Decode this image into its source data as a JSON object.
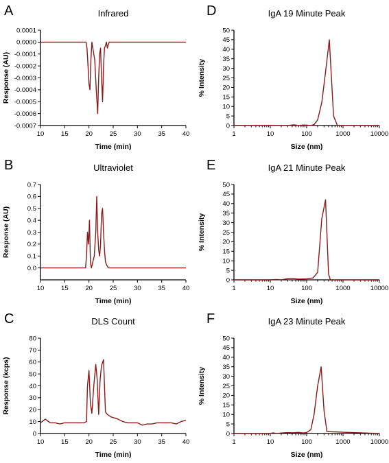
{
  "chart_data": [
    {
      "panel": "A",
      "type": "line",
      "title": "Infrared",
      "xlabel": "Time (min)",
      "ylabel": "Response (AU)",
      "xlim": [
        10,
        40
      ],
      "ylim": [
        -0.0007,
        0.0001
      ],
      "xscale": "linear",
      "xticks": [
        10,
        15,
        20,
        25,
        30,
        35,
        40
      ],
      "xtick_labels": [
        "10",
        "15",
        "20",
        "25",
        "30",
        "35",
        "40"
      ],
      "yticks": [
        -0.0007,
        -0.0006,
        -0.0005,
        -0.0004,
        -0.0003,
        -0.0002,
        -0.0001,
        0,
        0.0001
      ],
      "ytick_labels": [
        "-0.0007",
        "-0.0006",
        "-0.0005",
        "-0.0004",
        "-0.0003",
        "-0.0002",
        "-0.0001",
        "0.0000",
        "0.0001"
      ],
      "grid": false,
      "color": "#8b1a1a",
      "series": [
        {
          "x": [
            10,
            19.4,
            19.6,
            19.8,
            20.0,
            20.2,
            20.4,
            20.6,
            20.8,
            21.0,
            21.2,
            21.5,
            21.8,
            22.0,
            22.2,
            22.4,
            22.6,
            22.8,
            23.0,
            23.2,
            23.4,
            23.6,
            23.8,
            24.0,
            24.2,
            40
          ],
          "y": [
            0,
            0,
            -5e-05,
            -0.0002,
            -0.00035,
            -0.0004,
            -0.00015,
            0,
            -5e-05,
            -0.0001,
            -0.00015,
            -0.0004,
            -0.0006,
            -0.0003,
            -0.0001,
            -5e-05,
            -0.0003,
            -0.0005,
            -0.0002,
            -5e-05,
            -3e-05,
            0,
            -5e-05,
            -2e-05,
            0,
            0
          ]
        }
      ]
    },
    {
      "panel": "B",
      "type": "line",
      "title": "Ultraviolet",
      "xlabel": "Time (min)",
      "ylabel": "Response (AU)",
      "xlim": [
        10,
        40
      ],
      "ylim": [
        -0.1,
        0.7
      ],
      "xscale": "linear",
      "xticks": [
        10,
        15,
        20,
        25,
        30,
        35,
        40
      ],
      "xtick_labels": [
        "10",
        "15",
        "20",
        "25",
        "30",
        "35",
        "40"
      ],
      "yticks": [
        0.0,
        0.1,
        0.2,
        0.3,
        0.4,
        0.5,
        0.6,
        0.7
      ],
      "ytick_labels": [
        "0.0",
        "0.1",
        "0.2",
        "0.3",
        "0.4",
        "0.5",
        "0.6",
        "0.7"
      ],
      "grid": false,
      "color": "#8b1a1a",
      "series": [
        {
          "x": [
            10,
            19.3,
            19.5,
            19.7,
            19.9,
            20.1,
            20.3,
            20.5,
            20.8,
            21.1,
            21.4,
            21.6,
            21.8,
            22.0,
            22.2,
            22.4,
            22.6,
            22.8,
            23.0,
            23.2,
            23.4,
            23.7,
            24.0,
            40
          ],
          "y": [
            0,
            0,
            0.1,
            0.3,
            0.2,
            0.4,
            0.05,
            0,
            0.05,
            0.1,
            0.3,
            0.6,
            0.3,
            0.15,
            0.1,
            0.2,
            0.45,
            0.5,
            0.3,
            0.15,
            0.05,
            0.02,
            0,
            0
          ]
        }
      ]
    },
    {
      "panel": "C",
      "type": "line",
      "title": "DLS Count",
      "xlabel": "Time (min)",
      "ylabel": "Response (kcps)",
      "xlim": [
        10,
        40
      ],
      "ylim": [
        0,
        80
      ],
      "xscale": "linear",
      "xticks": [
        10,
        15,
        20,
        25,
        30,
        35,
        40
      ],
      "xtick_labels": [
        "10",
        "15",
        "20",
        "25",
        "30",
        "35",
        "40"
      ],
      "yticks": [
        0,
        10,
        20,
        30,
        40,
        50,
        60,
        70,
        80
      ],
      "ytick_labels": [
        "0",
        "10",
        "20",
        "30",
        "40",
        "50",
        "60",
        "70",
        "80"
      ],
      "grid": false,
      "color": "#8b1a1a",
      "series": [
        {
          "x": [
            10,
            11,
            12,
            13,
            14,
            15,
            16,
            17,
            18,
            19,
            19.5,
            19.7,
            20.0,
            20.3,
            20.6,
            21.0,
            21.4,
            21.7,
            22.0,
            22.3,
            22.6,
            23.0,
            23.4,
            23.8,
            24.5,
            26,
            27,
            28,
            29,
            30,
            31,
            32,
            33,
            34,
            35,
            36,
            37,
            38,
            39,
            40
          ],
          "y": [
            9,
            12,
            9,
            9,
            8,
            9,
            9,
            9,
            9,
            9,
            10,
            40,
            53,
            25,
            17,
            40,
            58,
            45,
            16,
            45,
            57,
            62,
            18,
            16,
            14,
            12,
            10,
            9,
            9,
            9,
            7,
            8,
            8,
            9,
            9,
            9,
            9,
            8,
            10,
            11
          ]
        }
      ]
    },
    {
      "panel": "D",
      "type": "line",
      "title": "IgA 19 Minute Peak",
      "xlabel": "Size (nm)",
      "ylabel": "% Intensity",
      "xlim": [
        1,
        10000
      ],
      "ylim": [
        0,
        50
      ],
      "xscale": "log",
      "xticks": [
        1,
        10,
        100,
        1000,
        10000
      ],
      "xtick_labels": [
        "1",
        "10",
        "100",
        "1000",
        "10000"
      ],
      "yticks": [
        0,
        5,
        10,
        15,
        20,
        25,
        30,
        35,
        40,
        45,
        50
      ],
      "ytick_labels": [
        "0",
        "5",
        "10",
        "15",
        "20",
        "25",
        "30",
        "35",
        "40",
        "45",
        "50"
      ],
      "grid": false,
      "color": "#8b1a1a",
      "series": [
        {
          "x": [
            1,
            30,
            45,
            60,
            80,
            100,
            130,
            160,
            200,
            260,
            330,
            420,
            550,
            700,
            10000
          ],
          "y": [
            0,
            0,
            0.4,
            0,
            0.3,
            0.2,
            0,
            0.5,
            3,
            12,
            28,
            45,
            5,
            0,
            0
          ]
        }
      ]
    },
    {
      "panel": "E",
      "type": "line",
      "title": "IgA 21 Minute Peak",
      "xlabel": "Size (nm)",
      "ylabel": "% Intensity",
      "xlim": [
        1,
        10000
      ],
      "ylim": [
        0,
        50
      ],
      "xscale": "log",
      "xticks": [
        1,
        10,
        100,
        1000,
        10000
      ],
      "xtick_labels": [
        "1",
        "10",
        "100",
        "1000",
        "10000"
      ],
      "yticks": [
        0,
        5,
        10,
        15,
        20,
        25,
        30,
        35,
        40,
        45,
        50
      ],
      "ytick_labels": [
        "0",
        "5",
        "10",
        "15",
        "20",
        "25",
        "30",
        "35",
        "40",
        "45",
        "50"
      ],
      "grid": false,
      "color": "#8b1a1a",
      "series": [
        {
          "x": [
            1,
            10,
            15,
            20,
            30,
            40,
            60,
            100,
            150,
            200,
            260,
            330,
            400,
            450,
            10000
          ],
          "y": [
            0,
            0,
            0.2,
            0,
            0.6,
            0.8,
            0.4,
            0.5,
            1,
            4,
            32,
            42,
            3,
            0,
            0
          ]
        }
      ]
    },
    {
      "panel": "F",
      "type": "line",
      "title": "IgA 23 Minute Peak",
      "xlabel": "Size (nm)",
      "ylabel": "% Intensity",
      "xlim": [
        1,
        10000
      ],
      "ylim": [
        0,
        50
      ],
      "xscale": "log",
      "xticks": [
        1,
        10,
        100,
        1000,
        10000
      ],
      "xtick_labels": [
        "1",
        "10",
        "100",
        "1000",
        "10000"
      ],
      "yticks": [
        0,
        5,
        10,
        15,
        20,
        25,
        30,
        35,
        40,
        45,
        50
      ],
      "ytick_labels": [
        "0",
        "5",
        "10",
        "15",
        "20",
        "25",
        "30",
        "35",
        "40",
        "45",
        "50"
      ],
      "grid": false,
      "color": "#8b1a1a",
      "series": [
        {
          "x": [
            1,
            10,
            12,
            15,
            20,
            30,
            40,
            60,
            80,
            100,
            130,
            160,
            200,
            250,
            300,
            360,
            10000
          ],
          "y": [
            0,
            0,
            0.4,
            0,
            0.3,
            0.5,
            0.4,
            0.6,
            0.3,
            0.5,
            2,
            10,
            25,
            35,
            12,
            1,
            0
          ]
        }
      ]
    }
  ]
}
